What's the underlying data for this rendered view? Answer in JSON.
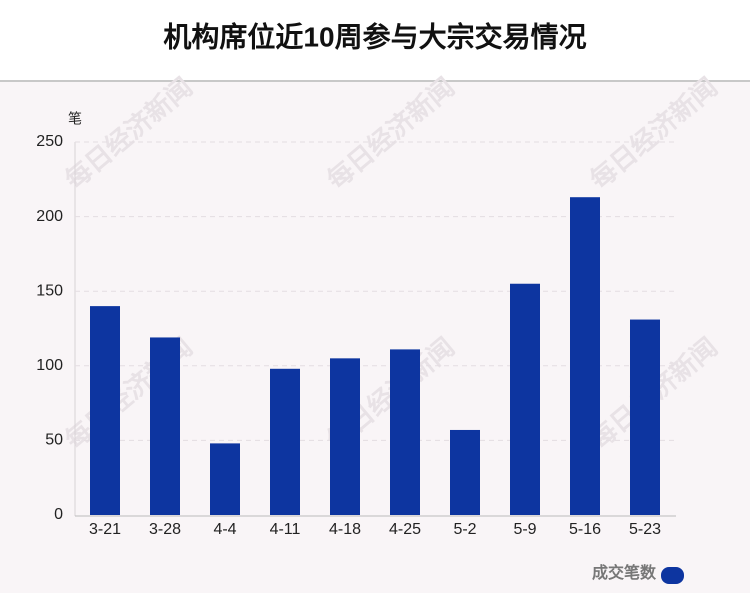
{
  "chart_data": {
    "type": "bar",
    "title": "机构席位近10周参与大宗交易情况",
    "y_label": "笔",
    "categories": [
      "3-21",
      "3-28",
      "4-4",
      "4-11",
      "4-18",
      "4-25",
      "5-2",
      "5-9",
      "5-16",
      "5-23"
    ],
    "series": [
      {
        "name": "成交笔数",
        "color": "#0d35a0",
        "values": [
          140,
          119,
          48,
          98,
          105,
          111,
          57,
          155,
          213,
          131
        ]
      }
    ],
    "ylim": [
      0,
      250
    ],
    "yticks": [
      0,
      50,
      100,
      150,
      200,
      250
    ],
    "grid": true,
    "legend": "bottom-right",
    "watermark": "每日经济新闻"
  }
}
